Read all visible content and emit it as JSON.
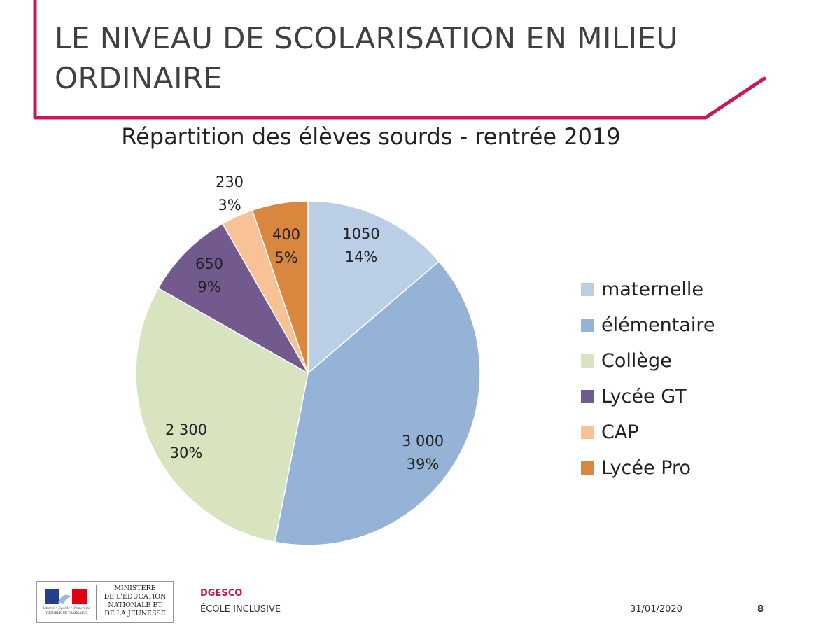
{
  "slide": {
    "title_line1": "LE NIVEAU DE SCOLARISATION EN MILIEU",
    "title_line2": "ORDINAIRE",
    "accent_color": "#c8175a"
  },
  "chart_data": {
    "type": "pie",
    "title": "Répartition des élèves sourds - rentrée 2019",
    "legend_position": "right",
    "slices": [
      {
        "name": "maternelle",
        "value": 1050,
        "value_label": "1050",
        "percent_label": "14%",
        "color": "#bacfe6"
      },
      {
        "name": "élémentaire",
        "value": 3000,
        "value_label": "3 000",
        "percent_label": "39%",
        "color": "#94b3d7"
      },
      {
        "name": "Collège",
        "value": 2300,
        "value_label": "2 300",
        "percent_label": "30%",
        "color": "#d8e4bf"
      },
      {
        "name": "Lycée GT",
        "value": 650,
        "value_label": "650",
        "percent_label": "9%",
        "color": "#72598e"
      },
      {
        "name": "CAP",
        "value": 230,
        "value_label": "230",
        "percent_label": "3%",
        "color": "#f8c196"
      },
      {
        "name": "Lycée Pro",
        "value": 400,
        "value_label": "400",
        "percent_label": "5%",
        "color": "#d9863e"
      }
    ]
  },
  "footer": {
    "logo_text": [
      "MINISTÈRE",
      "DE L'ÉDUCATION",
      "NATIONALE ET",
      "DE LA JEUNESSE"
    ],
    "logo_motto": "Liberté • Égalité • Fraternité",
    "logo_republic": "RÉPUBLIQUE FRANÇAISE",
    "org_name": "DGESCO",
    "org_sub": "ÉCOLE INCLUSIVE",
    "date": "31/01/2020",
    "page_number": "8"
  }
}
